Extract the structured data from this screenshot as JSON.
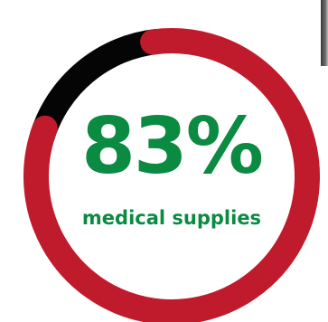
{
  "chart_data": {
    "type": "pie",
    "style": "donut",
    "values": [
      83,
      17
    ],
    "colors": [
      "#c01b2c",
      "#050505"
    ],
    "center_value": "83%",
    "center_label": "medical supplies",
    "text_color": "#0b8a42"
  }
}
